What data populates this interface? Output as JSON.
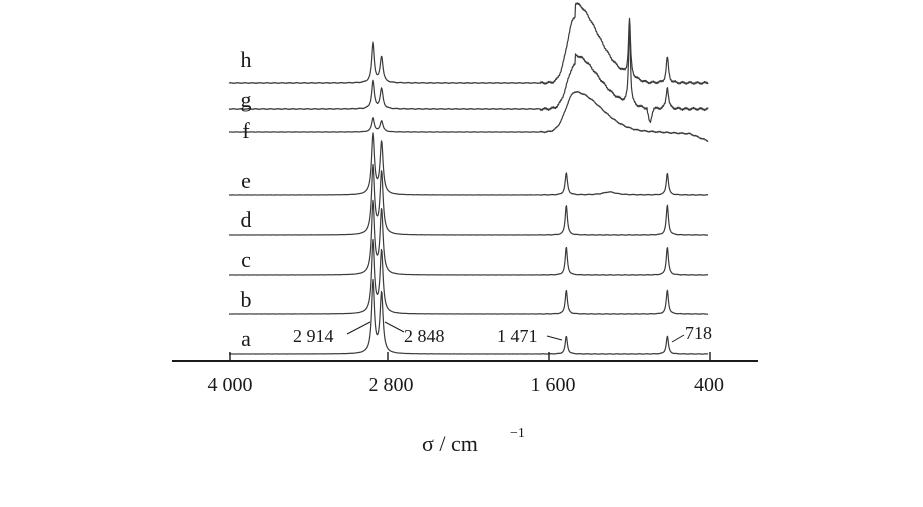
{
  "chart_data": {
    "type": "line",
    "xlabel": "σ / cm",
    "xlabel_superscript": "−1",
    "xlim": [
      4150,
      350
    ],
    "x_axis_reversed": true,
    "xticks": [
      {
        "value": 4000,
        "label": "4 000"
      },
      {
        "value": 2800,
        "label": "2 800"
      },
      {
        "value": 1600,
        "label": "1 600"
      },
      {
        "value": 400,
        "label": "400"
      }
    ],
    "grid": false,
    "legend": "none",
    "series_labels": [
      "h",
      "g",
      "f",
      "e",
      "d",
      "c",
      "b",
      "a"
    ],
    "annotations": [
      {
        "text": "2 914",
        "x": 2914
      },
      {
        "text": "2 848",
        "x": 2848
      },
      {
        "text": "1 471",
        "x": 1471
      },
      {
        "text": "718",
        "x": 718
      }
    ],
    "colors": {
      "line": "#3a3a3a",
      "axis": "#1a1a1a",
      "text": "#1a1a1a"
    }
  }
}
